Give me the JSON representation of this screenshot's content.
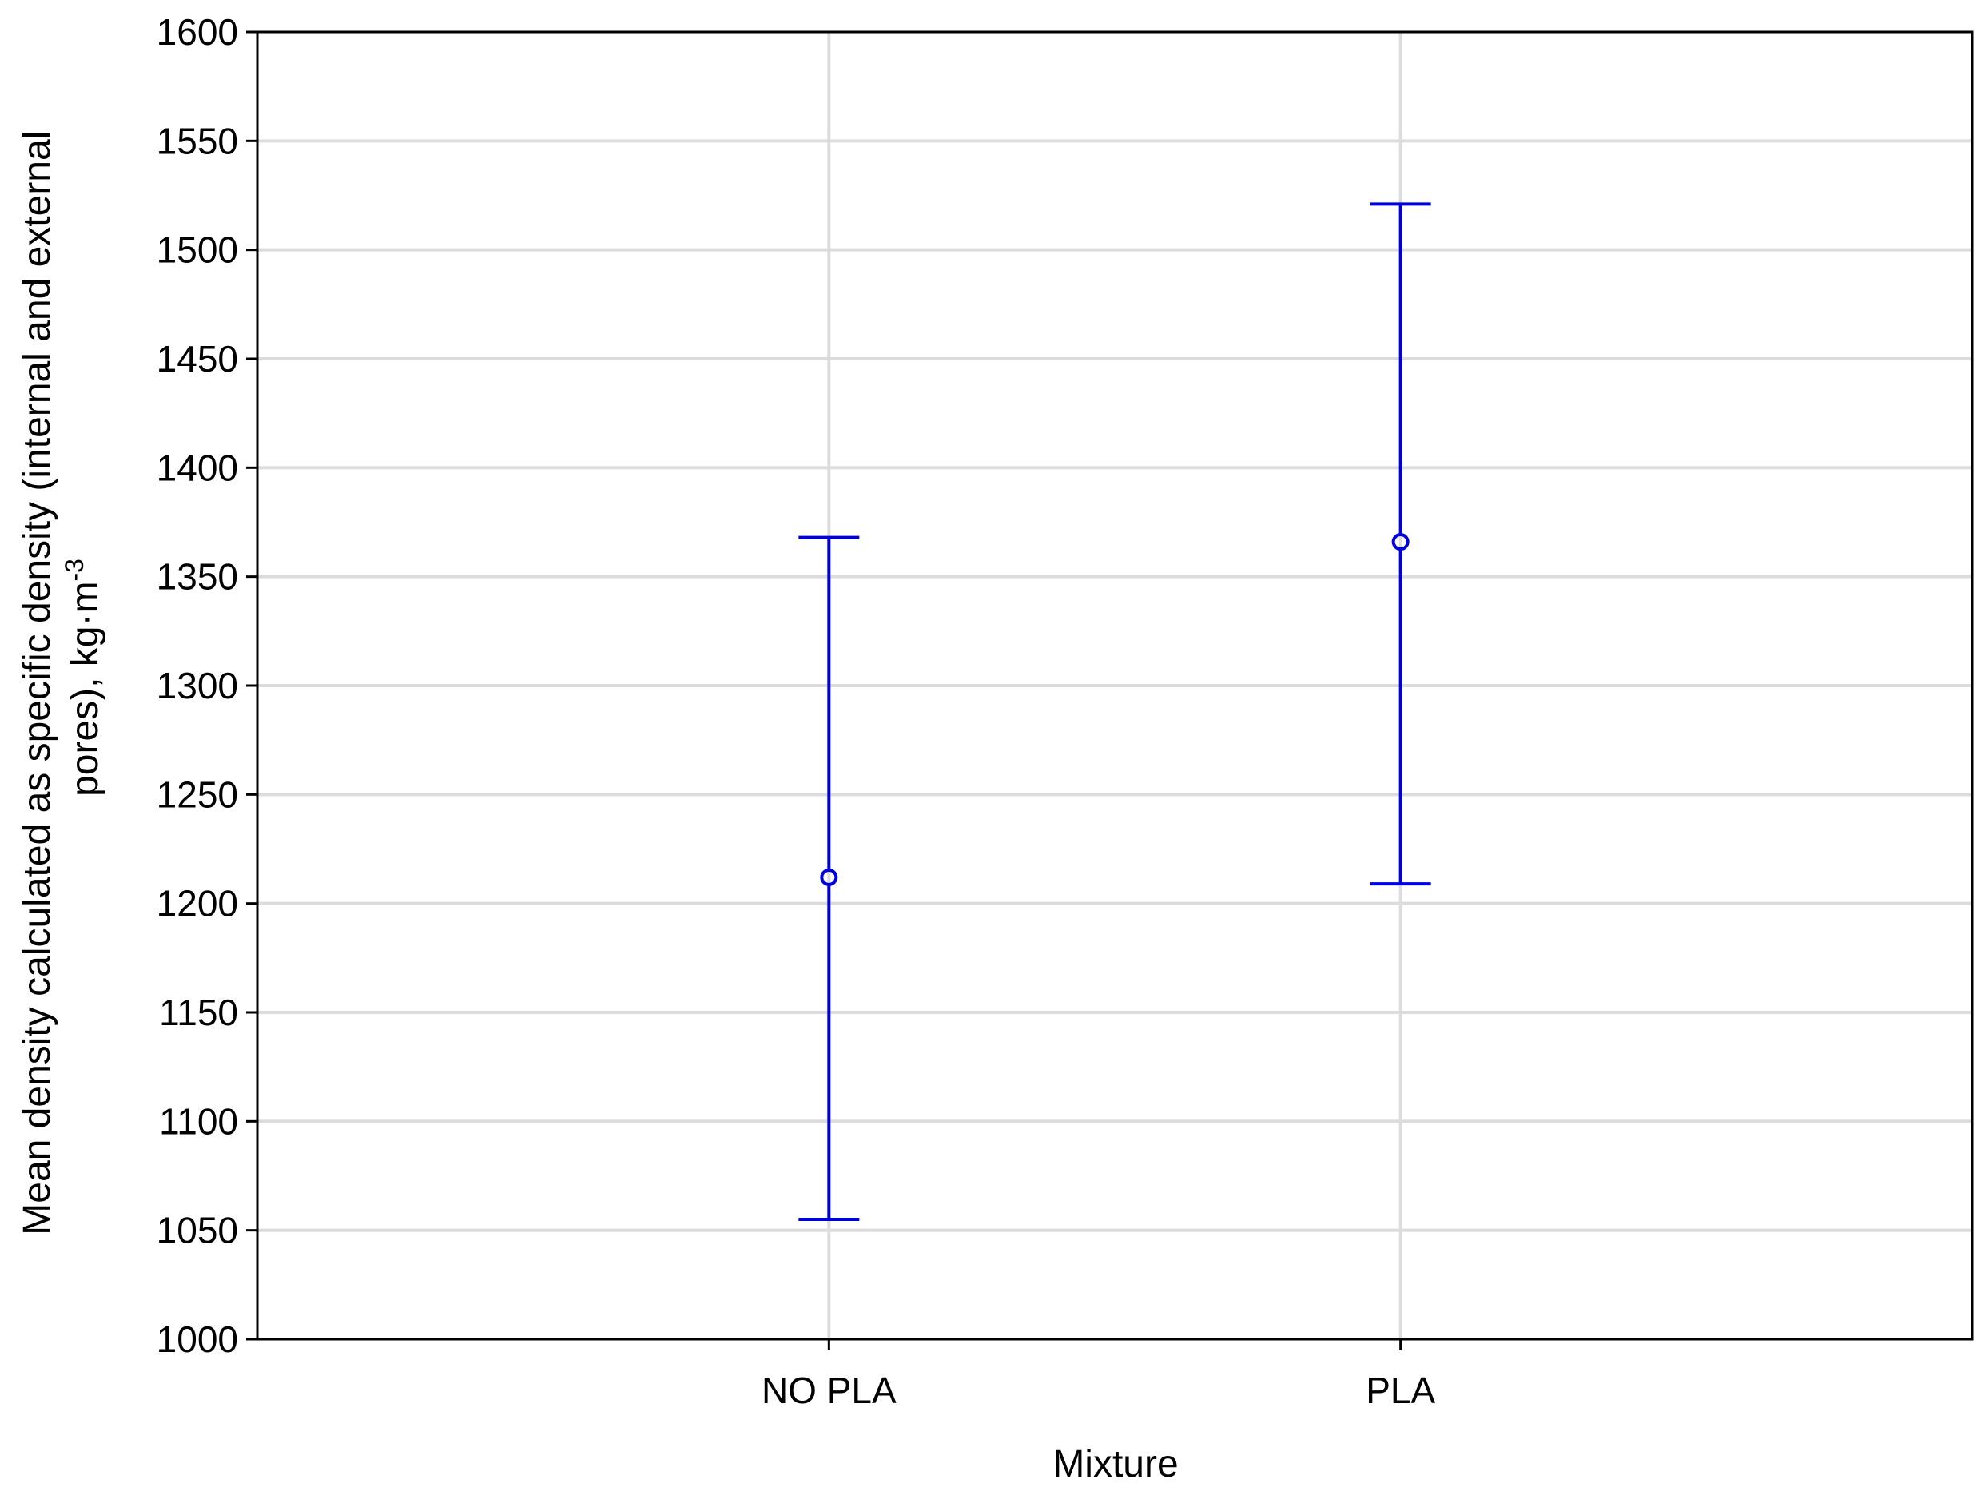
{
  "chart_data": {
    "type": "scatter",
    "subtype": "mean-with-error-bars",
    "title": "",
    "xlabel": "Mixture",
    "ylabel_lines": [
      "Mean density calculated as specific density (internal and external",
      "pores), kg·m"
    ],
    "ylabel_superscript": "-3",
    "categories": [
      "NO PLA",
      "PLA"
    ],
    "series": [
      {
        "means": [
          1212,
          1366
        ],
        "lower": [
          1055,
          1209
        ],
        "upper": [
          1368,
          1521
        ]
      }
    ],
    "ylim": [
      1000,
      1600
    ],
    "yticks": [
      1000,
      1050,
      1100,
      1150,
      1200,
      1250,
      1300,
      1350,
      1400,
      1450,
      1500,
      1550,
      1600
    ],
    "grid": true,
    "colors": {
      "series": "#0000dd",
      "grid": "#dcdcdc",
      "axis": "#000000"
    }
  }
}
